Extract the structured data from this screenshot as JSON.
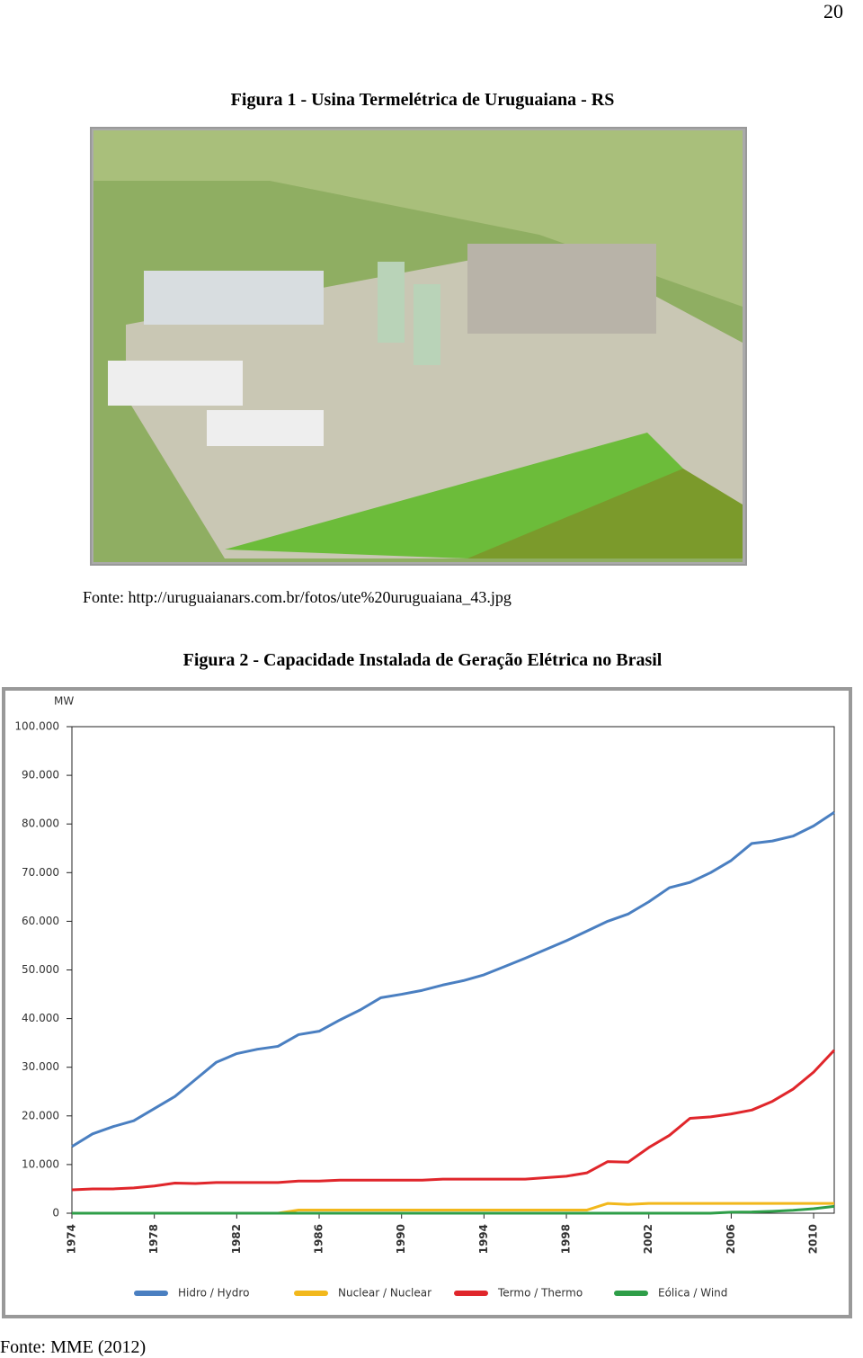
{
  "page_number": "20",
  "figure1": {
    "caption": "Figura 1 - Usina Termelétrica de Uruguaiana - RS",
    "source": "Fonte: http://uruguaianars.com.br/fotos/ute%20uruguaiana_43.jpg"
  },
  "figure2": {
    "caption": "Figura 2 - Capacidade Instalada de Geração Elétrica no Brasil",
    "source": "Fonte: MME (2012)"
  },
  "chart_data": {
    "type": "line",
    "y_label": "MW",
    "x": [
      1974,
      1975,
      1976,
      1977,
      1978,
      1979,
      1980,
      1981,
      1982,
      1983,
      1984,
      1985,
      1986,
      1987,
      1988,
      1989,
      1990,
      1991,
      1992,
      1993,
      1994,
      1995,
      1996,
      1997,
      1998,
      1999,
      2000,
      2001,
      2002,
      2003,
      2004,
      2005,
      2006,
      2007,
      2008,
      2009,
      2010,
      2011
    ],
    "xlim": [
      1974,
      2011
    ],
    "xticks": [
      1974,
      1978,
      1982,
      1986,
      1990,
      1994,
      1998,
      2002,
      2006,
      2010
    ],
    "ylim": [
      0,
      100000
    ],
    "yticks": [
      {
        "value": 0,
        "label": "0"
      },
      {
        "value": 10000,
        "label": "10.000"
      },
      {
        "value": 20000,
        "label": "20.000"
      },
      {
        "value": 30000,
        "label": "30.000"
      },
      {
        "value": 40000,
        "label": "40.000"
      },
      {
        "value": 50000,
        "label": "50.000"
      },
      {
        "value": 60000,
        "label": "60.000"
      },
      {
        "value": 70000,
        "label": "70.000"
      },
      {
        "value": 80000,
        "label": "80.000"
      },
      {
        "value": 90000,
        "label": "90.000"
      },
      {
        "value": 100000,
        "label": "100.000"
      }
    ],
    "grid": false,
    "series": [
      {
        "name": "Hidro / Hydro",
        "color": "#4a7fc1",
        "values": [
          13700,
          16300,
          17800,
          19000,
          21500,
          24000,
          27500,
          31000,
          32800,
          33700,
          34300,
          36700,
          37400,
          39700,
          41800,
          44300,
          45000,
          45800,
          46900,
          47800,
          49000,
          50700,
          52400,
          54200,
          56000,
          58000,
          60000,
          61500,
          64000,
          66900,
          68000,
          70000,
          72500,
          76000,
          76500,
          77500,
          79600,
          82400
        ]
      },
      {
        "name": "Nuclear / Nuclear",
        "color": "#f2b81c",
        "values": [
          0,
          0,
          0,
          0,
          0,
          0,
          0,
          0,
          0,
          0,
          0,
          657,
          657,
          657,
          657,
          657,
          657,
          657,
          657,
          657,
          657,
          657,
          657,
          657,
          657,
          657,
          2007,
          1800,
          2007,
          2007,
          2007,
          2007,
          2007,
          2007,
          2007,
          2007,
          2007,
          2007
        ]
      },
      {
        "name": "Termo / Thermo",
        "color": "#e0262b",
        "values": [
          4800,
          5000,
          5000,
          5200,
          5600,
          6200,
          6100,
          6300,
          6300,
          6300,
          6300,
          6600,
          6600,
          6800,
          6800,
          6800,
          6800,
          6800,
          7000,
          7000,
          7000,
          7000,
          7000,
          7300,
          7600,
          8300,
          10600,
          10500,
          13500,
          16000,
          19500,
          19800,
          20400,
          21200,
          23000,
          25500,
          29000,
          33500
        ]
      },
      {
        "name": "Eólica / Wind",
        "color": "#2e9e48",
        "values": [
          0,
          0,
          0,
          0,
          0,
          0,
          0,
          0,
          0,
          0,
          0,
          0,
          0,
          0,
          0,
          0,
          0,
          0,
          0,
          0,
          0,
          0,
          0,
          0,
          0,
          0,
          0,
          0,
          0,
          0,
          0,
          0,
          200,
          250,
          400,
          600,
          930,
          1400
        ]
      }
    ]
  }
}
